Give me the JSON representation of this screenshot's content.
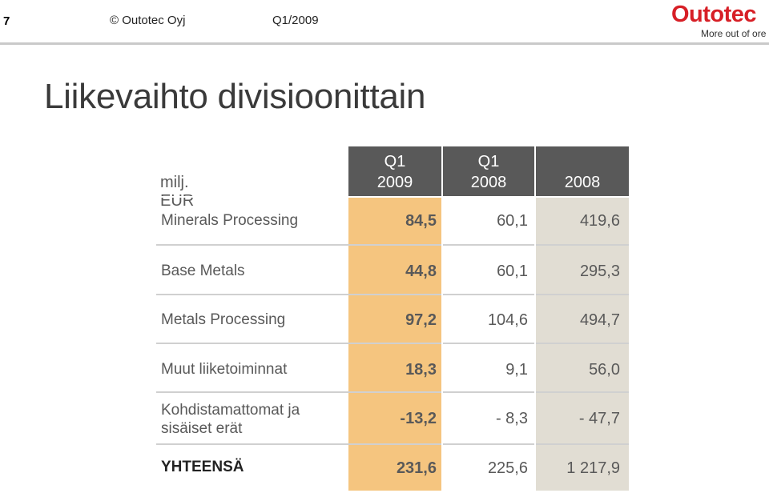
{
  "header": {
    "page_number": "7",
    "copyright": "© Outotec Oyj",
    "period": "Q1/2009",
    "logo_text": "Outotec",
    "logo_tagline": "More out of ore"
  },
  "title": "Liikevaihto divisioonittain",
  "table": {
    "unit_label": "milj. EUR",
    "columns": [
      {
        "line1": "Q1",
        "line2": "2009"
      },
      {
        "line1": "Q1",
        "line2": "2008"
      },
      {
        "line1": "",
        "line2": "2008"
      }
    ],
    "rows": [
      {
        "label": "Minerals Processing",
        "values": [
          "84,5",
          "60,1",
          "419,6"
        ]
      },
      {
        "label": "Base Metals",
        "values": [
          "44,8",
          "60,1",
          "295,3"
        ]
      },
      {
        "label": "Metals Processing",
        "values": [
          "97,2",
          "104,6",
          "494,7"
        ]
      },
      {
        "label": "Muut liiketoiminnat",
        "values": [
          "18,3",
          "9,1",
          "56,0"
        ]
      },
      {
        "label": "Kohdistamattomat ja sisäiset erät",
        "values": [
          "-13,2",
          "- 8,3",
          "- 47,7"
        ]
      },
      {
        "label": "YHTEENSÄ",
        "values": [
          "231,6",
          "225,6",
          "1 217,9"
        ]
      }
    ]
  },
  "colors": {
    "q1_2009_column": "#f5c57f",
    "year_2008_column": "#e1ddd3",
    "header_bg": "#595959",
    "brand_red": "#d71f26"
  }
}
